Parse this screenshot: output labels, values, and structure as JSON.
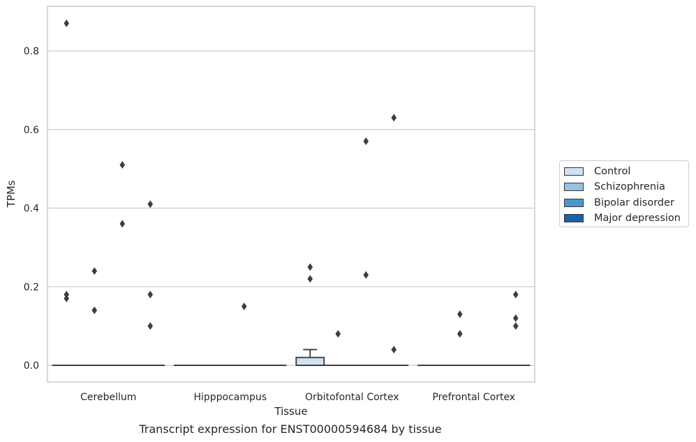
{
  "chart_data": {
    "type": "box",
    "title": "Transcript expression for ENST00000594684 by tissue",
    "xlabel": "Tissue",
    "ylabel": "TPMs",
    "ylim": [
      -0.043,
      0.915
    ],
    "yticks": [
      0.0,
      0.2,
      0.4,
      0.6,
      0.8
    ],
    "ytick_labels": [
      "0.0",
      "0.2",
      "0.4",
      "0.6",
      "0.8"
    ],
    "grid": "horizontal",
    "legend_position": "right",
    "categories": [
      "Cerebellum",
      "Hipppocampus",
      "Orbitofontal Cortex",
      "Prefrontal Cortex"
    ],
    "series": [
      {
        "name": "Control",
        "color": "#d0e1f2",
        "boxes": [
          {
            "q1": 0,
            "median": 0,
            "q3": 0,
            "whisker_low": 0,
            "whisker_high": 0,
            "outliers": [
              0.87,
              0.18,
              0.17
            ]
          },
          {
            "q1": 0,
            "median": 0,
            "q3": 0,
            "whisker_low": 0,
            "whisker_high": 0,
            "outliers": []
          },
          {
            "q1": 0,
            "median": 0,
            "q3": 0.02,
            "whisker_low": 0,
            "whisker_high": 0.04,
            "outliers": [
              0.25,
              0.22
            ]
          },
          {
            "q1": 0,
            "median": 0,
            "q3": 0,
            "whisker_low": 0,
            "whisker_high": 0,
            "outliers": []
          }
        ]
      },
      {
        "name": "Schizophrenia",
        "color": "#94c4df",
        "boxes": [
          {
            "q1": 0,
            "median": 0,
            "q3": 0,
            "whisker_low": 0,
            "whisker_high": 0,
            "outliers": [
              0.24,
              0.14
            ]
          },
          {
            "q1": 0,
            "median": 0,
            "q3": 0,
            "whisker_low": 0,
            "whisker_high": 0,
            "outliers": []
          },
          {
            "q1": 0,
            "median": 0,
            "q3": 0,
            "whisker_low": 0,
            "whisker_high": 0,
            "outliers": [
              0.08
            ]
          },
          {
            "q1": 0,
            "median": 0,
            "q3": 0,
            "whisker_low": 0,
            "whisker_high": 0,
            "outliers": [
              0.13,
              0.08
            ]
          }
        ]
      },
      {
        "name": "Bipolar disorder",
        "color": "#4a98c9",
        "boxes": [
          {
            "q1": 0,
            "median": 0,
            "q3": 0,
            "whisker_low": 0,
            "whisker_high": 0,
            "outliers": [
              0.51,
              0.36
            ]
          },
          {
            "q1": 0,
            "median": 0,
            "q3": 0,
            "whisker_low": 0,
            "whisker_high": 0,
            "outliers": [
              0.15
            ]
          },
          {
            "q1": 0,
            "median": 0,
            "q3": 0,
            "whisker_low": 0,
            "whisker_high": 0,
            "outliers": [
              0.57,
              0.23
            ]
          },
          {
            "q1": 0,
            "median": 0,
            "q3": 0,
            "whisker_low": 0,
            "whisker_high": 0,
            "outliers": []
          }
        ]
      },
      {
        "name": "Major depression",
        "color": "#1764ab",
        "boxes": [
          {
            "q1": 0,
            "median": 0,
            "q3": 0,
            "whisker_low": 0,
            "whisker_high": 0,
            "outliers": [
              0.41,
              0.18,
              0.1
            ]
          },
          {
            "q1": 0,
            "median": 0,
            "q3": 0,
            "whisker_low": 0,
            "whisker_high": 0,
            "outliers": []
          },
          {
            "q1": 0,
            "median": 0,
            "q3": 0,
            "whisker_low": 0,
            "whisker_high": 0,
            "outliers": [
              0.63,
              0.04
            ]
          },
          {
            "q1": 0,
            "median": 0,
            "q3": 0,
            "whisker_low": 0,
            "whisker_high": 0,
            "outliers": [
              0.18,
              0.12,
              0.1
            ]
          }
        ]
      }
    ]
  }
}
